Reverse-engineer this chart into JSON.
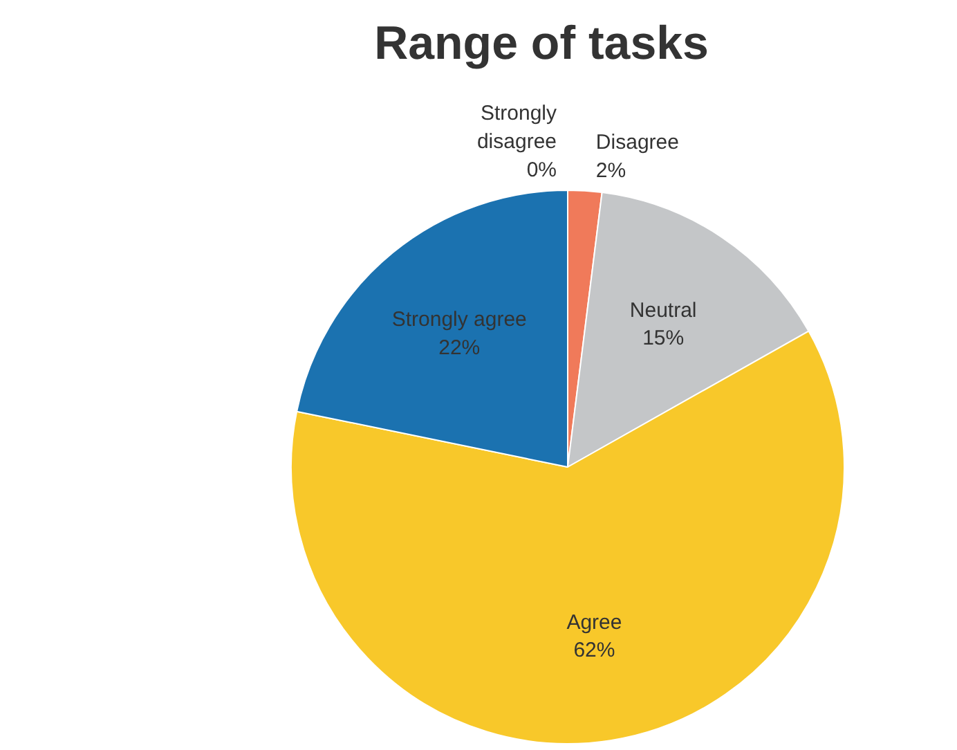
{
  "chart_data": {
    "type": "pie",
    "title": "Range of tasks",
    "categories": [
      "Strongly disagree",
      "Disagree",
      "Neutral",
      "Agree",
      "Strongly agree"
    ],
    "values": [
      0,
      2,
      15,
      62,
      22
    ],
    "value_labels": [
      "0%",
      "2%",
      "15%",
      "62%",
      "22%"
    ],
    "colors": [
      "#7f7f7f",
      "#f07a5a",
      "#c4c6c8",
      "#f8c82a",
      "#1b72b0"
    ],
    "legend": false
  }
}
